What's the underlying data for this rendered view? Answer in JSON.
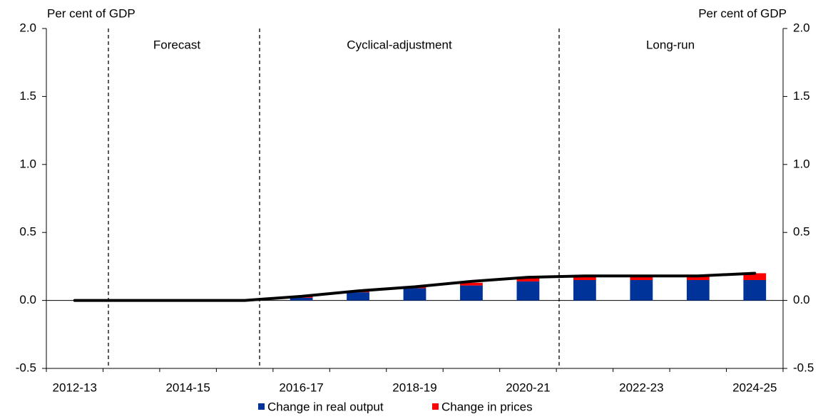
{
  "chart_data": {
    "type": "bar",
    "stacked": true,
    "y_label": "Per cent of GDP",
    "y2_label": "Per cent of GDP",
    "categories": [
      "2012-13",
      null,
      "2014-15",
      null,
      "2016-17",
      null,
      "2018-19",
      null,
      "2020-21",
      null,
      "2022-23",
      null,
      "2024-25"
    ],
    "series": [
      {
        "name": "Change in real output",
        "color": "#003399",
        "values": [
          0,
          0,
          0,
          0,
          0.02,
          0.06,
          0.09,
          0.11,
          0.14,
          0.15,
          0.15,
          0.15,
          0.15
        ]
      },
      {
        "name": "Change in prices",
        "color": "#ff0000",
        "values": [
          0,
          0,
          0,
          0,
          0.01,
          0.01,
          0.01,
          0.02,
          0.03,
          0.03,
          0.03,
          0.03,
          0.05
        ]
      },
      {
        "type": "line",
        "color": "#000000",
        "values": [
          0,
          0,
          0,
          0,
          0.03,
          0.07,
          0.1,
          0.14,
          0.17,
          0.18,
          0.18,
          0.18,
          0.2
        ]
      }
    ],
    "annotations": [
      "Forecast",
      "Cyclical-adjustment",
      "Long-run"
    ],
    "ylim": [
      -0.5,
      2
    ],
    "yticks": [
      {
        "value": -0.5,
        "label": "-0.5"
      },
      {
        "value": 0,
        "label": "0.0"
      },
      {
        "value": 0.5,
        "label": "0.5"
      },
      {
        "value": 1,
        "label": "1.0"
      },
      {
        "value": 1.5,
        "label": "1.5"
      },
      {
        "value": 2,
        "label": "2.0"
      }
    ],
    "y2lim": [
      -0.5,
      2
    ],
    "y2ticks": [
      {
        "value": -0.5,
        "label": "-0.5"
      },
      {
        "value": 0,
        "label": "0.0"
      },
      {
        "value": 0.5,
        "label": "0.5"
      },
      {
        "value": 1,
        "label": "1.0"
      },
      {
        "value": 1.5,
        "label": "1.5"
      },
      {
        "value": 2,
        "label": "2.0"
      }
    ],
    "legend": "bottom"
  }
}
